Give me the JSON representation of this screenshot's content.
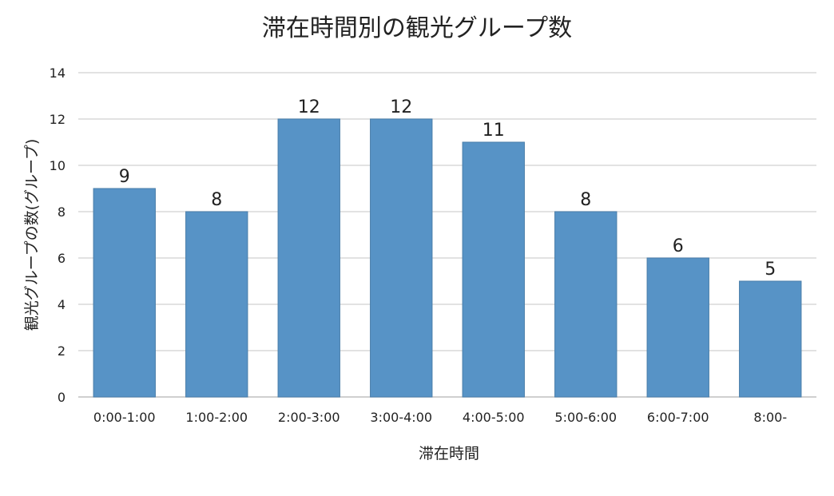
{
  "chart_data": {
    "type": "bar",
    "title": "滞在時間別の観光グループ数",
    "xlabel": "滞在時間",
    "ylabel": "観光グループの数(グループ)",
    "categories": [
      "0:00-1:00",
      "1:00-2:00",
      "2:00-3:00",
      "3:00-4:00",
      "4:00-5:00",
      "5:00-6:00",
      "6:00-7:00",
      "8:00-"
    ],
    "values": [
      9,
      8,
      12,
      12,
      11,
      8,
      6,
      5
    ],
    "ylim": [
      0,
      14
    ],
    "yticks": [
      0,
      2,
      4,
      6,
      8,
      10,
      12,
      14
    ],
    "grid": true,
    "data_labels": true,
    "colors": {
      "bar": "#5793c6",
      "bar_edge": "#4a7eaa",
      "grid": "#d9d9d9"
    }
  }
}
